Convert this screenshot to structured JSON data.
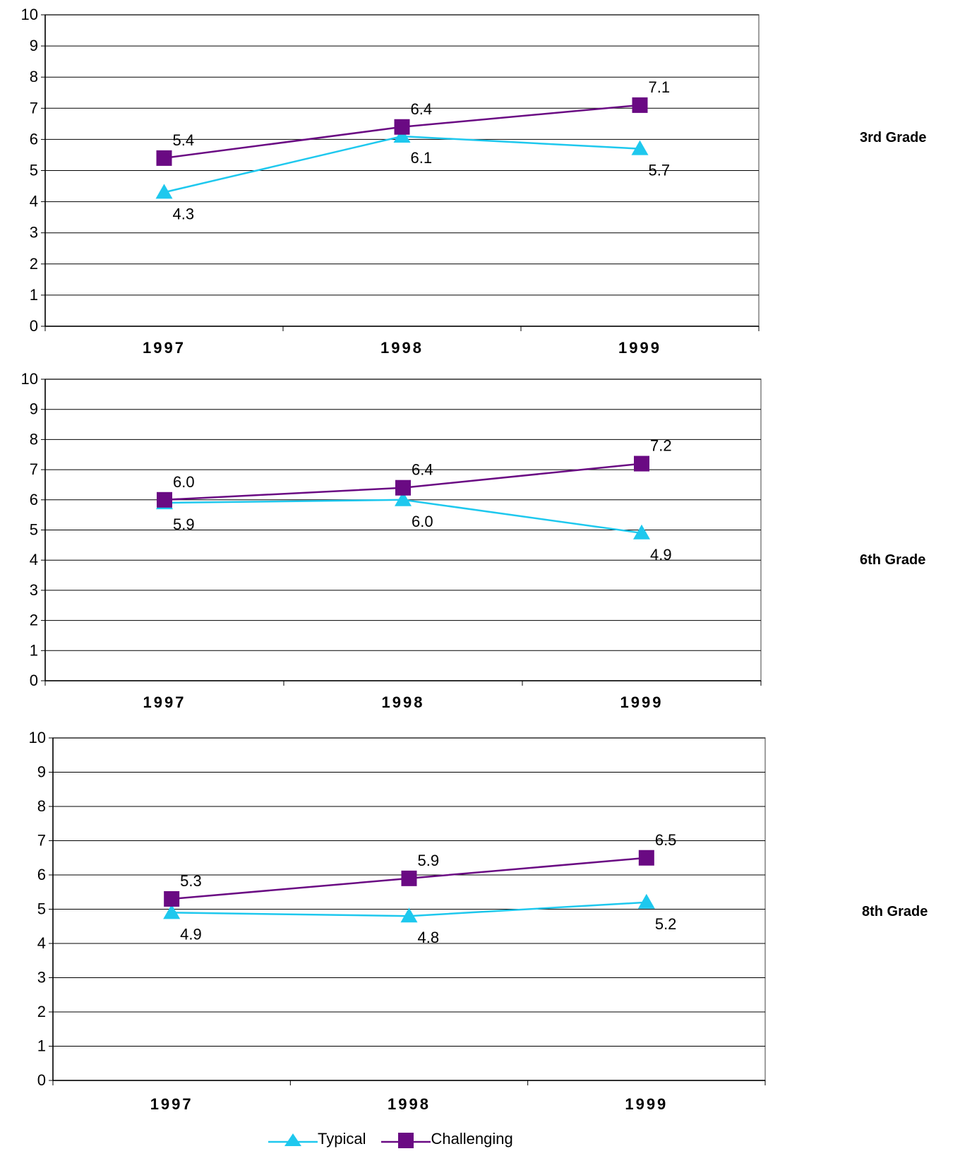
{
  "colors": {
    "typical": "#1EC8EE",
    "challenging": "#6A0A83",
    "grid": "#000000",
    "frame": "#808080"
  },
  "legend": {
    "typical_label": "Typical",
    "challenging_label": "Challenging"
  },
  "chart_data": [
    {
      "type": "line",
      "grade_label": "3rd Grade",
      "categories": [
        "1997",
        "1998",
        "1999"
      ],
      "ylim": [
        0,
        10
      ],
      "yticks": [
        0,
        1,
        2,
        3,
        4,
        5,
        6,
        7,
        8,
        9,
        10
      ],
      "grid": true,
      "series": [
        {
          "name": "Typical",
          "marker": "triangle",
          "values": [
            4.3,
            6.1,
            5.7
          ],
          "labels": [
            "4.3",
            "6.1",
            "5.7"
          ]
        },
        {
          "name": "Challenging",
          "marker": "square",
          "values": [
            5.4,
            6.4,
            7.1
          ],
          "labels": [
            "5.4",
            "6.4",
            "7.1"
          ]
        }
      ]
    },
    {
      "type": "line",
      "grade_label": "6th Grade",
      "categories": [
        "1997",
        "1998",
        "1999"
      ],
      "ylim": [
        0,
        10
      ],
      "yticks": [
        0,
        1,
        2,
        3,
        4,
        5,
        6,
        7,
        8,
        9,
        10
      ],
      "grid": true,
      "series": [
        {
          "name": "Typical",
          "marker": "triangle",
          "values": [
            5.9,
            6.0,
            4.9
          ],
          "labels": [
            "5.9",
            "6.0",
            "4.9"
          ]
        },
        {
          "name": "Challenging",
          "marker": "square",
          "values": [
            6.0,
            6.4,
            7.2
          ],
          "labels": [
            "6.0",
            "6.4",
            "7.2"
          ]
        }
      ]
    },
    {
      "type": "line",
      "grade_label": "8th Grade",
      "categories": [
        "1997",
        "1998",
        "1999"
      ],
      "ylim": [
        0,
        10
      ],
      "yticks": [
        0,
        1,
        2,
        3,
        4,
        5,
        6,
        7,
        8,
        9,
        10
      ],
      "grid": true,
      "series": [
        {
          "name": "Typical",
          "marker": "triangle",
          "values": [
            4.9,
            4.8,
            5.2
          ],
          "labels": [
            "4.9",
            "4.8",
            "5.2"
          ]
        },
        {
          "name": "Challenging",
          "marker": "square",
          "values": [
            5.3,
            5.9,
            6.5
          ],
          "labels": [
            "5.3",
            "5.9",
            "6.5"
          ]
        }
      ]
    }
  ]
}
